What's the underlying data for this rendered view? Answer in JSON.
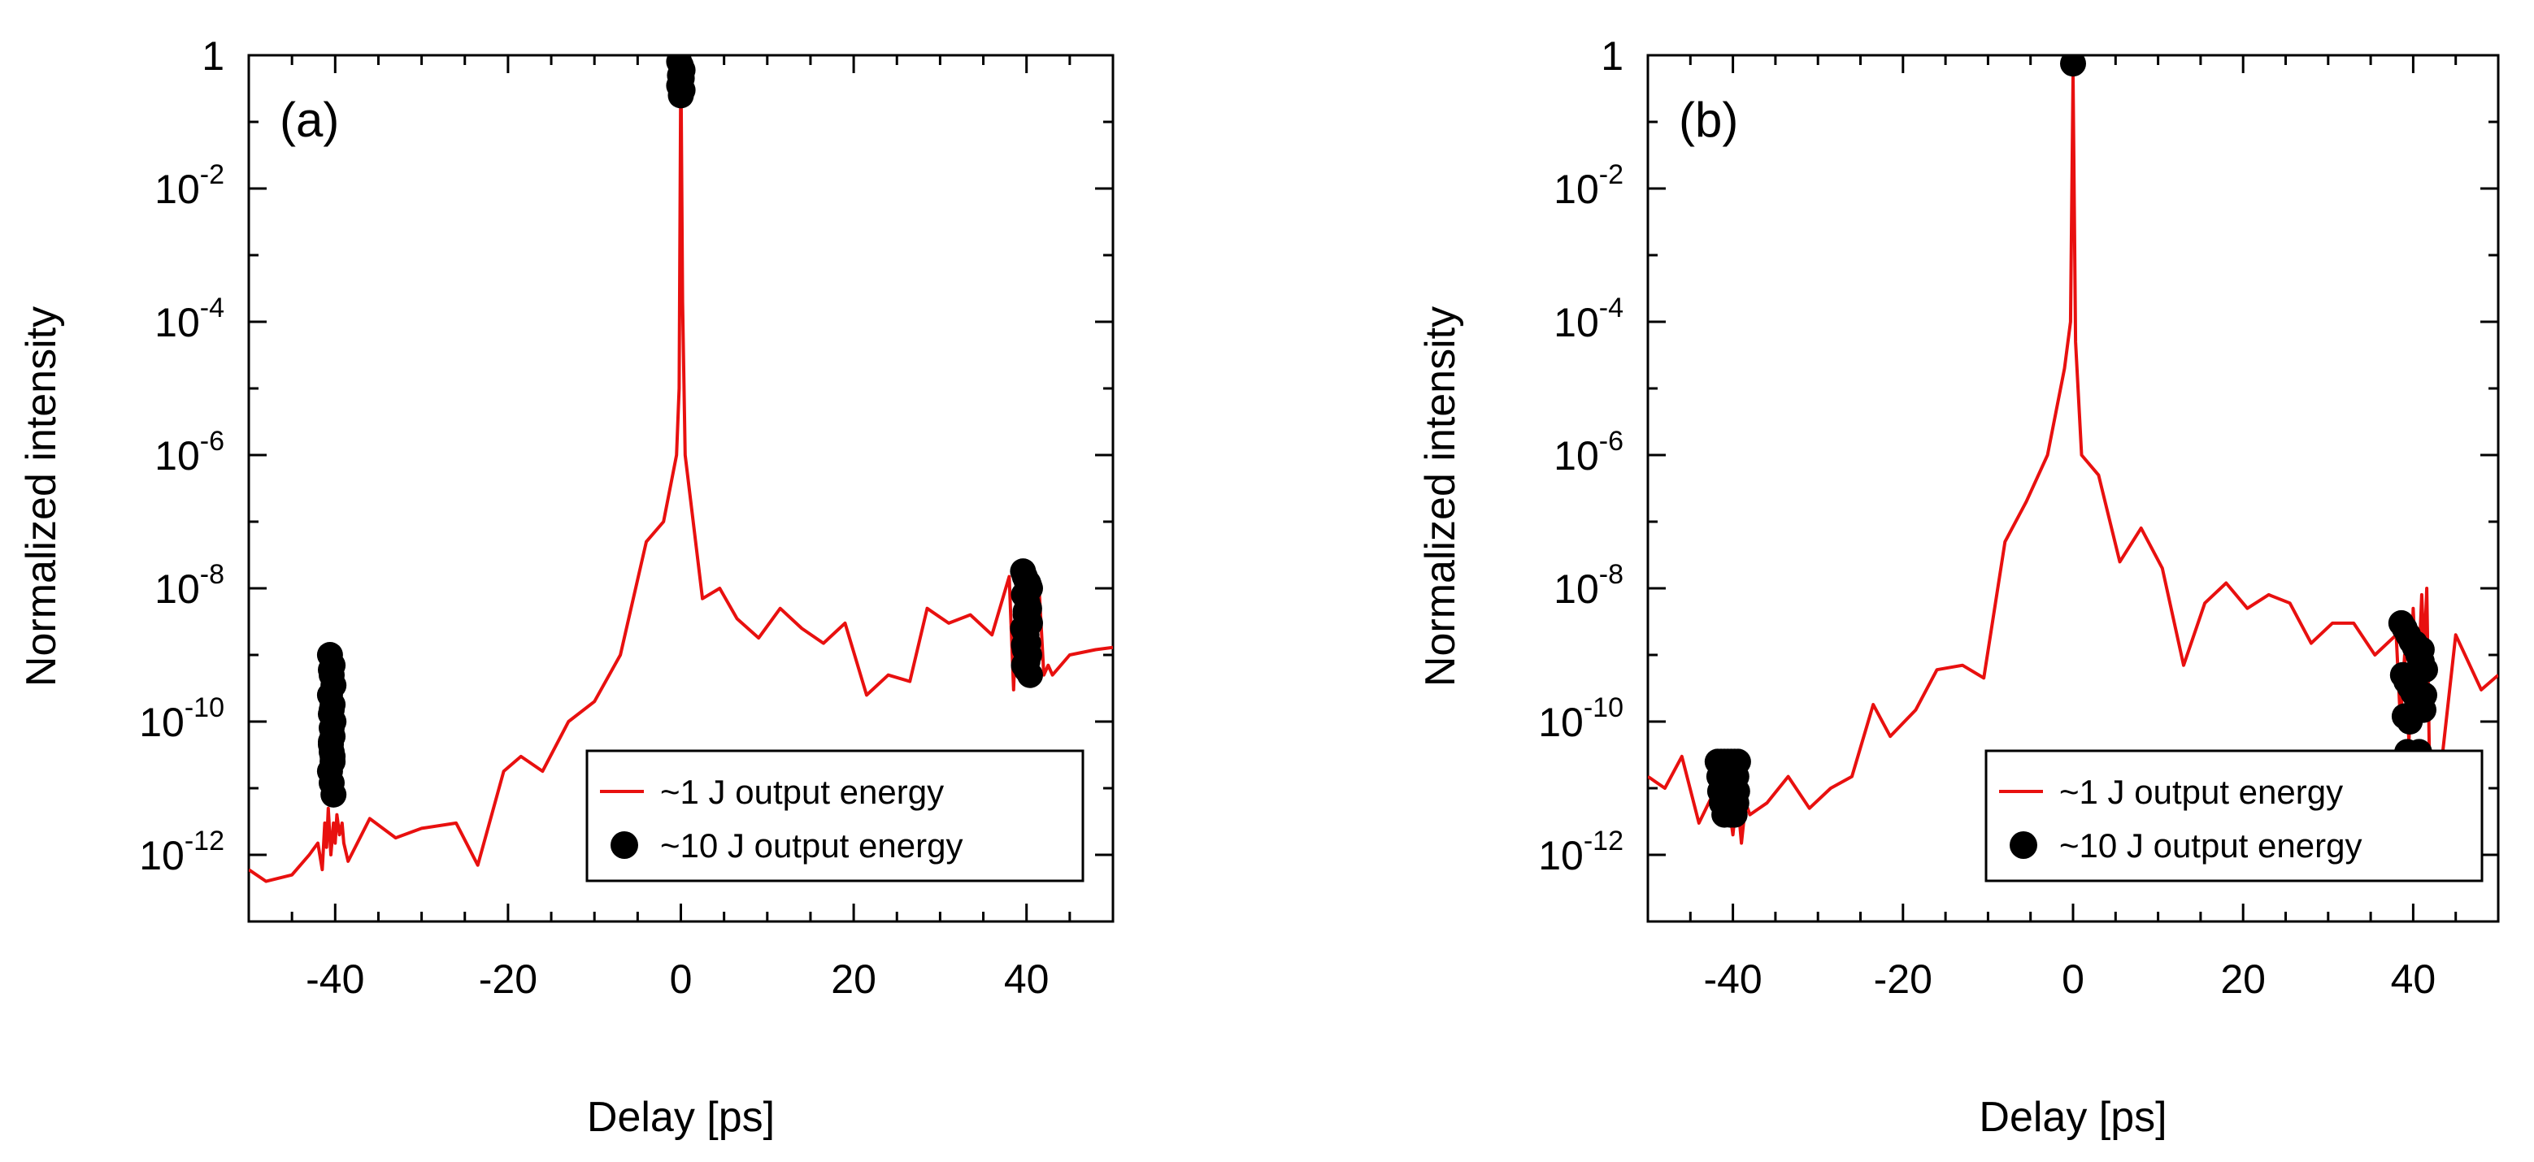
{
  "figure": {
    "panels": [
      "a",
      "b"
    ]
  },
  "chart_data": [
    {
      "type": "line",
      "panel_label": "(a)",
      "title": "",
      "xlabel": "Delay [ps]",
      "ylabel": "Normalized intensity",
      "xlim": [
        -50,
        50
      ],
      "ylim": [
        1e-13,
        1
      ],
      "y_scale": "log",
      "x_ticks": [
        -40,
        -20,
        0,
        20,
        40
      ],
      "x_tick_labels": [
        "-40",
        "-20",
        "0",
        "20",
        "40"
      ],
      "y_ticks": [
        {
          "base": "1",
          "exp": "",
          "value": 1
        },
        {
          "base": "10",
          "exp": "-2",
          "value": 0.01
        },
        {
          "base": "10",
          "exp": "-4",
          "value": 0.0001
        },
        {
          "base": "10",
          "exp": "-6",
          "value": 1e-06
        },
        {
          "base": "10",
          "exp": "-8",
          "value": 1e-08
        },
        {
          "base": "10",
          "exp": "-10",
          "value": 1e-10
        },
        {
          "base": "10",
          "exp": "-12",
          "value": 1e-12
        }
      ],
      "grid": false,
      "legend_position": "bottom-right",
      "series": [
        {
          "name": "~1 J   output energy",
          "kind": "line",
          "color": "#e8100f",
          "x": [
            -50,
            -48,
            -45,
            -43,
            -42,
            -41.5,
            -41.2,
            -41,
            -40.8,
            -40.5,
            -40.2,
            -40,
            -39.8,
            -39.5,
            -39.2,
            -39,
            -38.5,
            -36,
            -33,
            -30,
            -26,
            -23.5,
            -20.5,
            -18.5,
            -16,
            -13,
            -10,
            -7,
            -4,
            -2,
            -0.5,
            -0.2,
            0,
            0.2,
            0.5,
            2.5,
            4.5,
            6.5,
            9,
            11.5,
            14,
            16.5,
            19,
            21.5,
            24,
            26.5,
            28.5,
            31,
            33.5,
            36,
            38,
            38.5,
            39,
            39.5,
            40,
            40.5,
            41,
            41.5,
            42,
            42.5,
            43,
            45,
            48,
            50
          ],
          "y": [
            6e-13,
            4e-13,
            5e-13,
            1e-12,
            1.5e-12,
            6e-13,
            3e-12,
            1.3e-12,
            5e-12,
            1e-12,
            3e-12,
            1.5e-12,
            4e-12,
            2e-12,
            3e-12,
            1.5e-12,
            8e-13,
            3.5e-12,
            1.8e-12,
            2.5e-12,
            3e-12,
            7e-13,
            1.8e-11,
            3e-11,
            1.8e-11,
            1e-10,
            2e-10,
            1e-09,
            5e-08,
            1e-07,
            1e-06,
            1e-05,
            1,
            0.0002,
            1e-06,
            7e-09,
            1e-08,
            3.5e-09,
            1.8e-09,
            5e-09,
            2.5e-09,
            1.5e-09,
            3e-09,
            2.5e-10,
            5e-10,
            4e-10,
            5e-09,
            3e-09,
            4e-09,
            2e-09,
            1.5e-08,
            3e-10,
            2e-08,
            5e-09,
            1.5e-08,
            8e-09,
            2e-09,
            8e-09,
            5e-10,
            7e-10,
            5e-10,
            1e-09,
            1.2e-09,
            1.3e-09
          ]
        },
        {
          "name": "~10 J output energy",
          "kind": "scatter",
          "color": "#000000",
          "x": [
            -40.6,
            -40.3,
            -40.4,
            -40.2,
            -40.6,
            -40.3,
            -40.5,
            -40.2,
            -40.4,
            -40.3,
            -40.5,
            -40.4,
            -40.3,
            -40.6,
            -40.4,
            -40.2,
            -40.5,
            -40.4,
            -40.3,
            -40.5,
            -0.2,
            0,
            0.2,
            -0.1,
            0.1,
            0,
            -0.2,
            0.2,
            0,
            39.6,
            39.8,
            40,
            40.2,
            40.4,
            39.7,
            40.1,
            40.3,
            39.9,
            40.4,
            39.6,
            40,
            40.2,
            39.8,
            40.3,
            40.1,
            39.7,
            40,
            40.4,
            39.9,
            40.2,
            39.8,
            40.1,
            40.3,
            39.7,
            40
          ],
          "y": [
            1e-09,
            7e-10,
            5e-10,
            3.5e-10,
            2.5e-10,
            1.8e-10,
            1.3e-10,
            1e-10,
            8e-11,
            6e-11,
            4.5e-11,
            3.5e-11,
            2.5e-11,
            1.8e-11,
            1.2e-11,
            8e-12,
            5e-11,
            1.5e-10,
            3e-11,
            6e-10,
            0.8,
            0.7,
            0.6,
            0.5,
            0.45,
            0.4,
            0.35,
            0.3,
            0.25,
            1.8e-08,
            1.5e-08,
            1.3e-08,
            1.2e-08,
            1e-08,
            8e-09,
            6e-09,
            5e-09,
            4e-09,
            3e-09,
            2.5e-09,
            2e-09,
            1.5e-09,
            1.2e-09,
            1e-09,
            8e-10,
            7e-10,
            6e-10,
            5e-10,
            4.5e-09,
            3.5e-09,
            2.2e-09,
            9e-10,
            1.1e-08,
            1.4e-09,
            7e-09
          ]
        }
      ]
    },
    {
      "type": "line",
      "panel_label": "(b)",
      "title": "",
      "xlabel": "Delay [ps]",
      "ylabel": "Normalized intensity",
      "xlim": [
        -50,
        50
      ],
      "ylim": [
        1e-13,
        1
      ],
      "y_scale": "log",
      "x_ticks": [
        -40,
        -20,
        0,
        20,
        40
      ],
      "x_tick_labels": [
        "-40",
        "-20",
        "0",
        "20",
        "40"
      ],
      "y_ticks": [
        {
          "base": "1",
          "exp": "",
          "value": 1
        },
        {
          "base": "10",
          "exp": "-2",
          "value": 0.01
        },
        {
          "base": "10",
          "exp": "-4",
          "value": 0.0001
        },
        {
          "base": "10",
          "exp": "-6",
          "value": 1e-06
        },
        {
          "base": "10",
          "exp": "-8",
          "value": 1e-08
        },
        {
          "base": "10",
          "exp": "-10",
          "value": 1e-10
        },
        {
          "base": "10",
          "exp": "-12",
          "value": 1e-12
        }
      ],
      "grid": false,
      "legend_position": "bottom-right",
      "series": [
        {
          "name": "~1 J   output energy",
          "kind": "line",
          "color": "#e8100f",
          "x": [
            -50,
            -48,
            -46,
            -44,
            -42,
            -41,
            -40.5,
            -40,
            -39.5,
            -39,
            -38.5,
            -38,
            -36,
            -33.5,
            -31,
            -28.5,
            -26,
            -23.5,
            -21.5,
            -18.5,
            -16,
            -13,
            -10.5,
            -8,
            -5.5,
            -3,
            -1,
            -0.3,
            0,
            0.3,
            1,
            3,
            5.5,
            8,
            10.5,
            13,
            15.5,
            18,
            20.5,
            23,
            25.5,
            28,
            30.5,
            33,
            35.5,
            38,
            38.5,
            39,
            39.5,
            40,
            40.5,
            41,
            41.3,
            41.6,
            42,
            42.5,
            43,
            45,
            48,
            50
          ],
          "y": [
            1.5e-11,
            1e-11,
            3e-11,
            3e-12,
            1e-11,
            3e-12,
            6e-12,
            2e-12,
            8e-12,
            1.5e-12,
            6e-12,
            4e-12,
            6e-12,
            1.5e-11,
            5e-12,
            1e-11,
            1.5e-11,
            1.8e-10,
            6e-11,
            1.5e-10,
            6e-10,
            7e-10,
            4.5e-10,
            5e-08,
            2e-07,
            1e-06,
            2e-05,
            0.0001,
            0.5,
            5e-05,
            1e-06,
            5e-07,
            2.5e-08,
            8e-08,
            2e-08,
            7e-10,
            6e-09,
            1.2e-08,
            5e-09,
            8e-09,
            6e-09,
            1.5e-09,
            3e-09,
            3e-09,
            1e-09,
            2e-09,
            1e-10,
            1e-09,
            5e-11,
            5e-09,
            2e-10,
            8e-09,
            1e-09,
            1e-08,
            5e-12,
            2e-11,
            1e-11,
            2e-09,
            3e-10,
            5e-10
          ]
        },
        {
          "name": "~10 J output energy",
          "kind": "scatter",
          "color": "#000000",
          "x": [
            -41.8,
            -41.4,
            -41,
            -40.6,
            -40.2,
            -39.8,
            -39.4,
            -41.6,
            -41.2,
            -40.8,
            -40.4,
            -40,
            -39.6,
            -41.5,
            -41,
            -40.5,
            -40,
            -39.5,
            -41.3,
            -40.7,
            -40.1,
            -39.6,
            -41,
            -40.3,
            -39.8,
            0,
            38.6,
            39,
            39.4,
            39.8,
            40.2,
            40.6,
            41,
            41.4,
            38.8,
            39.2,
            39.6,
            40,
            40.4,
            40.8,
            41.2,
            39,
            39.6,
            40.2,
            40.8,
            41.3,
            39.3,
            40,
            40.7,
            39.5,
            40.3,
            41
          ],
          "y": [
            2.5e-11,
            2.5e-11,
            2.5e-11,
            2.5e-11,
            2.5e-11,
            2.5e-11,
            2.5e-11,
            1.5e-11,
            1.5e-11,
            1.5e-11,
            1.5e-11,
            1.5e-11,
            1.5e-11,
            9e-12,
            9e-12,
            9e-12,
            9e-12,
            9e-12,
            6e-12,
            6e-12,
            6e-12,
            6e-12,
            4e-12,
            4e-12,
            4e-12,
            0.75,
            3e-09,
            2.5e-09,
            2e-09,
            1.6e-09,
            1.3e-09,
            1e-09,
            8e-10,
            6e-10,
            5e-10,
            4e-10,
            3.3e-10,
            2.7e-10,
            2.2e-10,
            1.8e-10,
            1.5e-10,
            1.2e-10,
            1e-10,
            1.5e-09,
            7e-10,
            2.5e-10,
            3.5e-11,
            3e-11,
            3.5e-11,
            2.5e-11,
            5e-10,
            1.2e-09
          ]
        }
      ]
    }
  ]
}
